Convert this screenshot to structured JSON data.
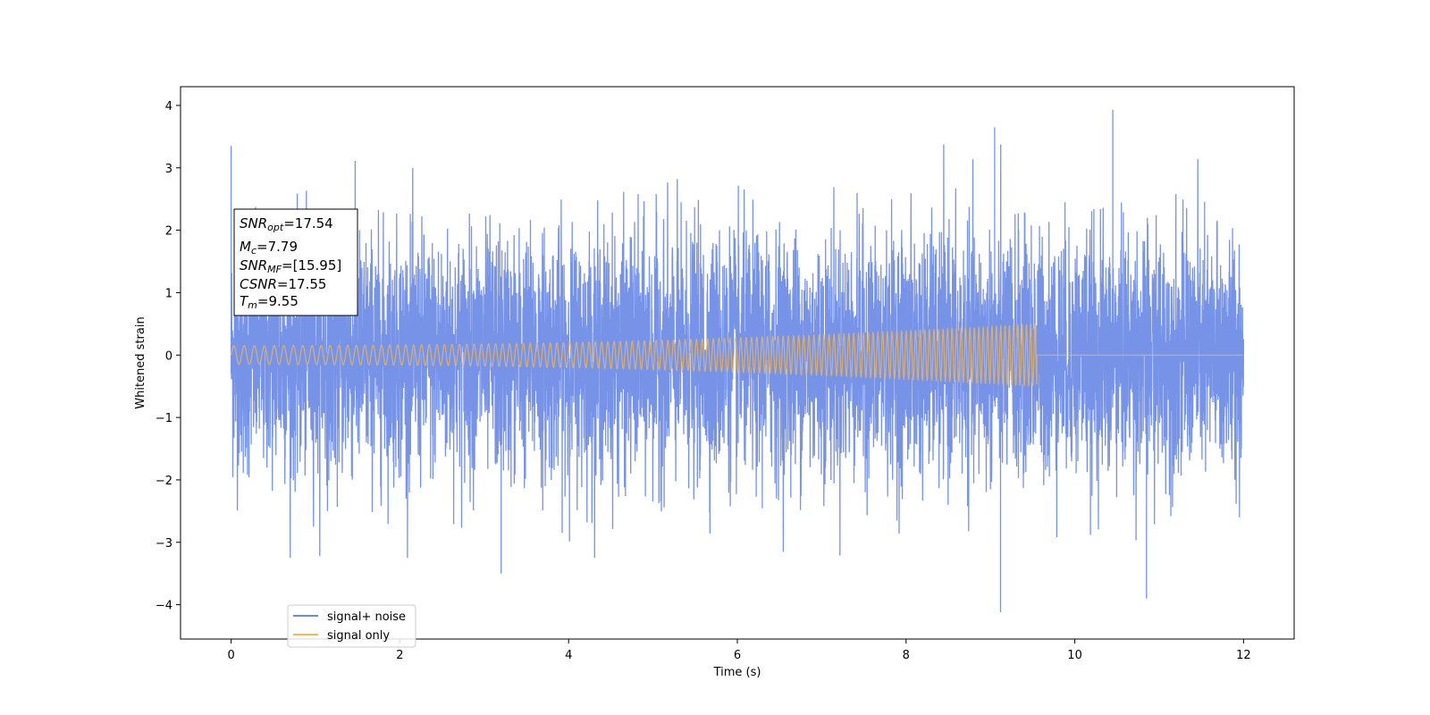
{
  "chart_data": {
    "type": "line",
    "xlabel": "Time (s)",
    "ylabel": "Whitened strain",
    "xlim": [
      -0.6,
      12.6
    ],
    "ylim": [
      -4.55,
      4.3
    ],
    "xticks": [
      0,
      2,
      4,
      6,
      8,
      10,
      12
    ],
    "xtick_labels": [
      "0",
      "2",
      "4",
      "6",
      "8",
      "10",
      "12"
    ],
    "yticks": [
      -4,
      -3,
      -2,
      -1,
      0,
      1,
      2,
      3,
      4
    ],
    "ytick_labels": [
      "−4",
      "−3",
      "−2",
      "−1",
      "0",
      "1",
      "2",
      "3",
      "4"
    ],
    "grid": false,
    "legend_position": "lower-left",
    "series": [
      {
        "name": "signal+ noise",
        "color": "#6a8ae6",
        "t_start": 0,
        "t_end": 12,
        "peak_high": 3.93,
        "peak_low": -4.12,
        "typical_envelope": [
          -2.5,
          2.5
        ]
      },
      {
        "name": "signal only",
        "color": "#f7b850",
        "t_start": 0,
        "t_end": 12,
        "merger_time": 9.55,
        "amplitude_start": 0.15,
        "amplitude_end": 0.5,
        "post_merger_value": 0.0
      }
    ],
    "annotation": {
      "lines": [
        {
          "sym": "SNR",
          "sub": "opt",
          "value": "=17.54"
        },
        {
          "sym": "M",
          "sub": "c",
          "value": "=7.79"
        },
        {
          "sym": "SNR",
          "sub": "MF",
          "value": "=[15.95]"
        },
        {
          "sym": "CSNR",
          "sub": "",
          "value": "=17.55"
        },
        {
          "sym": "T",
          "sub": "m",
          "value": "=9.55"
        }
      ]
    }
  }
}
